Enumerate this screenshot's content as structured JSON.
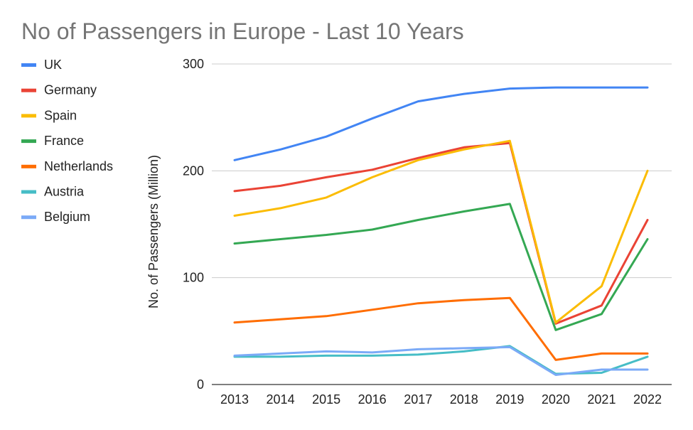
{
  "chart_data": {
    "type": "line",
    "title": "No of Passengers in Europe - Last 10 Years",
    "xlabel": "",
    "ylabel": "No. of Passengers (Million)",
    "categories": [
      "2013",
      "2014",
      "2015",
      "2016",
      "2017",
      "2018",
      "2019",
      "2020",
      "2021",
      "2022"
    ],
    "ylim": [
      0,
      300
    ],
    "yticks": [
      0,
      100,
      200,
      300
    ],
    "grid": true,
    "legend_position": "left",
    "series": [
      {
        "name": "UK",
        "color": "#4285F4",
        "values": [
          210,
          220,
          232,
          249,
          265,
          272,
          277,
          278,
          278,
          278
        ]
      },
      {
        "name": "Germany",
        "color": "#EA4335",
        "values": [
          181,
          186,
          194,
          201,
          212,
          222,
          226,
          57,
          74,
          154
        ]
      },
      {
        "name": "Spain",
        "color": "#FBBC04",
        "values": [
          158,
          165,
          175,
          194,
          210,
          220,
          228,
          58,
          92,
          200
        ]
      },
      {
        "name": "France",
        "color": "#34A853",
        "values": [
          132,
          136,
          140,
          145,
          154,
          162,
          169,
          51,
          66,
          136
        ]
      },
      {
        "name": "Netherlands",
        "color": "#FF6D01",
        "values": [
          58,
          61,
          64,
          70,
          76,
          79,
          81,
          23,
          29,
          29
        ]
      },
      {
        "name": "Austria",
        "color": "#46BDC6",
        "values": [
          26,
          26,
          27,
          27,
          28,
          31,
          36,
          10,
          11,
          26
        ]
      },
      {
        "name": "Belgium",
        "color": "#7BAAF7",
        "values": [
          27,
          29,
          31,
          30,
          33,
          34,
          35,
          9,
          14,
          14
        ]
      }
    ]
  }
}
